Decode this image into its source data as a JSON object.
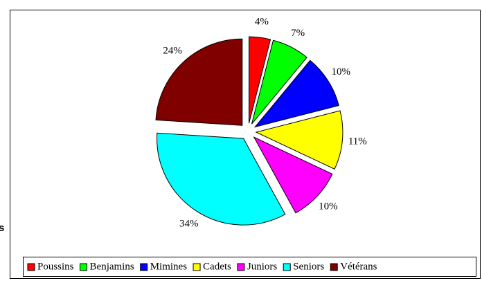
{
  "side_text": "s",
  "chart_data": {
    "type": "pie",
    "categories": [
      "Poussins",
      "Benjamins",
      "Mimines",
      "Cadets",
      "Juniors",
      "Seniors",
      "Vétérans"
    ],
    "values": [
      4,
      7,
      10,
      11,
      10,
      34,
      24
    ],
    "value_labels": [
      "4%",
      "7%",
      "10%",
      "11%",
      "10%",
      "34%",
      "24%"
    ],
    "colors": [
      "#ff0000",
      "#00ff00",
      "#0000ff",
      "#ffff00",
      "#ff00ff",
      "#00ffff",
      "#800000"
    ],
    "exploded": true,
    "legend": "bottom"
  }
}
